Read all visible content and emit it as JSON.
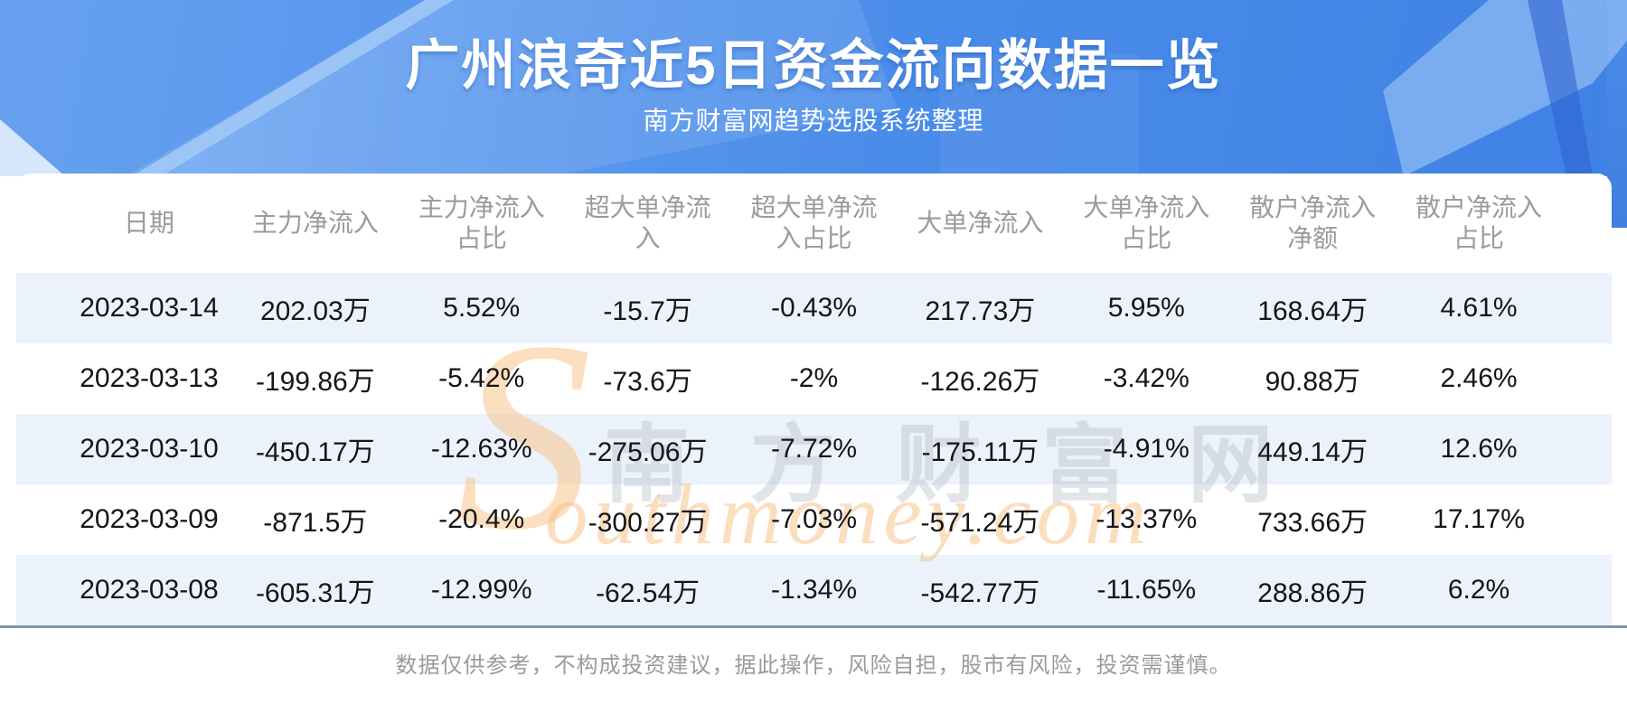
{
  "page": {
    "title": "广州浪奇近5日资金流向数据一览",
    "subtitle": "南方财富网趋势选股系统整理",
    "disclaimer": "数据仅供参考，不构成投资建议，据此操作，风险自担，股市有风险，投资需谨慎。"
  },
  "watermark": {
    "initial": "S",
    "cn": "南 方 财 富 网",
    "en": "outhmoney.com"
  },
  "colors": {
    "header_blue": "#4a8ce9",
    "header_blue_light": "#7db1f3",
    "row_alt_blue": "#ebf2fb",
    "divider_gray_blue": "#7e93a9",
    "column_header_text": "#9b9b9b",
    "cell_text": "#151515",
    "title_text": "#ffffff",
    "watermark_orange": "#f6be7d",
    "watermark_gray": "#b2b8c4",
    "footer_text": "#9a9a9a"
  },
  "chart_data": {
    "type": "table",
    "title": "广州浪奇近5日资金流向数据一览",
    "subtitle": "南方财富网趋势选股系统整理",
    "columns": [
      "日期",
      "主力净流入",
      "主力净流入占比",
      "超大单净流入",
      "超大单净流入占比",
      "大单净流入",
      "大单净流入占比",
      "散户净流入净额",
      "散户净流入占比"
    ],
    "column_display": [
      "日期",
      "主力净流入",
      "主力净流入\n占比",
      "超大单净流\n入",
      "超大单净流\n入占比",
      "大单净流入",
      "大单净流入\n占比",
      "散户净流入\n净额",
      "散户净流入\n占比"
    ],
    "rows": [
      [
        "2023-03-14",
        "202.03万",
        "5.52%",
        "-15.7万",
        "-0.43%",
        "217.73万",
        "5.95%",
        "168.64万",
        "4.61%"
      ],
      [
        "2023-03-13",
        "-199.86万",
        "-5.42%",
        "-73.6万",
        "-2%",
        "-126.26万",
        "-3.42%",
        "90.88万",
        "2.46%"
      ],
      [
        "2023-03-10",
        "-450.17万",
        "-12.63%",
        "-275.06万",
        "-7.72%",
        "-175.11万",
        "-4.91%",
        "449.14万",
        "12.6%"
      ],
      [
        "2023-03-09",
        "-871.5万",
        "-20.4%",
        "-300.27万",
        "-7.03%",
        "-571.24万",
        "-13.37%",
        "733.66万",
        "17.17%"
      ],
      [
        "2023-03-08",
        "-605.31万",
        "-12.99%",
        "-62.54万",
        "-1.34%",
        "-542.77万",
        "-11.65%",
        "288.86万",
        "6.2%"
      ]
    ]
  }
}
